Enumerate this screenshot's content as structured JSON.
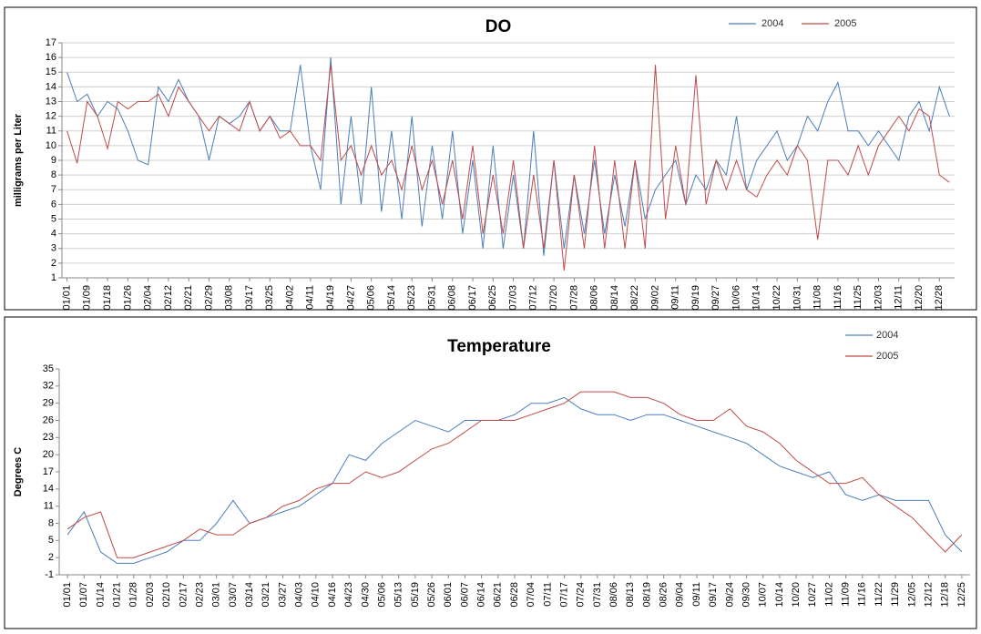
{
  "chart_data": [
    {
      "type": "line",
      "title": "DO",
      "y_label": "milligrams per Liter",
      "categories": [
        "01/01",
        null,
        "01/09",
        null,
        "01/18",
        null,
        "01/26",
        null,
        "02/04",
        null,
        "02/12",
        null,
        "02/21",
        null,
        "02/29",
        null,
        "03/08",
        null,
        "03/17",
        null,
        "03/25",
        null,
        "04/02",
        null,
        "04/11",
        null,
        "04/19",
        null,
        "04/27",
        null,
        "05/06",
        null,
        "05/14",
        null,
        "05/23",
        null,
        "05/31",
        null,
        "06/08",
        null,
        "06/17",
        null,
        "06/25",
        null,
        "07/03",
        null,
        "07/12",
        null,
        "07/20",
        null,
        "07/28",
        null,
        "08/06",
        null,
        "08/14",
        null,
        "08/22",
        null,
        "09/02",
        null,
        "09/11",
        null,
        "09/19",
        null,
        "09/27",
        null,
        "10/06",
        null,
        "10/14",
        null,
        "10/22",
        null,
        "10/31",
        null,
        "11/08",
        null,
        "11/16",
        null,
        "11/25",
        null,
        "12/03",
        null,
        "12/11",
        null,
        "12/20",
        null,
        "12/28",
        null
      ],
      "series": [
        {
          "name": "2004",
          "color": "#4a7ebb",
          "values": [
            15,
            13,
            13.5,
            12,
            13,
            12.5,
            11,
            9,
            8.7,
            14,
            13,
            14.5,
            13,
            12,
            9,
            12,
            11.5,
            12,
            13,
            11,
            12,
            11,
            11,
            15.5,
            10,
            7,
            16,
            6,
            12,
            6,
            14,
            5.5,
            11,
            5,
            12,
            4.5,
            10,
            5,
            11,
            4,
            9,
            3,
            10,
            3,
            8,
            3,
            11,
            2.5,
            9,
            3,
            8,
            4,
            9,
            4,
            8,
            4.5,
            9,
            5,
            7,
            8,
            9,
            6,
            8,
            7,
            9,
            8,
            12,
            7,
            9,
            10,
            11,
            9,
            10,
            12,
            11,
            13,
            14.3,
            11,
            11,
            10,
            11,
            10,
            9,
            12,
            13,
            11,
            14,
            12
          ]
        },
        {
          "name": "2005",
          "color": "#be4b48",
          "values": [
            11,
            8.8,
            13,
            12,
            9.8,
            13,
            12.5,
            13,
            13,
            13.5,
            12,
            14,
            13,
            12,
            11,
            12,
            11.5,
            11,
            13,
            11,
            12,
            10.5,
            11,
            10,
            10,
            9,
            15.5,
            9,
            10,
            8,
            10,
            8,
            9,
            7,
            10,
            7,
            9,
            6,
            9,
            5,
            10,
            4,
            8,
            4,
            9,
            3,
            8,
            3,
            9,
            1.5,
            8,
            3,
            10,
            3,
            9,
            3,
            9,
            3,
            15.5,
            5,
            10,
            6,
            14.8,
            6,
            9,
            7,
            9,
            7,
            6.5,
            8,
            9,
            8,
            10,
            9,
            3.6,
            9,
            9,
            8,
            10,
            8,
            10,
            11,
            12,
            11,
            12.5,
            12,
            8,
            7.5
          ]
        }
      ],
      "ylim": [
        1,
        17
      ],
      "yticks": [
        1,
        2,
        3,
        4,
        5,
        6,
        7,
        8,
        9,
        10,
        11,
        12,
        13,
        14,
        15,
        16,
        17
      ],
      "grid": true,
      "legend": "upper right"
    },
    {
      "type": "line",
      "title": "Temperature",
      "y_label": "Degrees C",
      "categories": [
        "01/01",
        "01/07",
        "01/14",
        "01/21",
        "01/28",
        "02/03",
        "02/10",
        "02/17",
        "02/23",
        "03/01",
        "03/07",
        "03/14",
        "03/21",
        "03/27",
        "04/03",
        "04/10",
        "04/16",
        "04/23",
        "04/30",
        "05/06",
        "05/13",
        "05/19",
        "05/26",
        "06/01",
        "06/07",
        "06/14",
        "06/21",
        "06/28",
        "07/04",
        "07/11",
        "07/17",
        "07/24",
        "07/31",
        "08/06",
        "08/13",
        "08/19",
        "08/26",
        "09/04",
        "09/11",
        "09/17",
        "09/24",
        "09/30",
        "10/07",
        "10/14",
        "10/20",
        "10/27",
        "11/02",
        "11/09",
        "11/16",
        "11/22",
        "11/29",
        "12/05",
        "12/12",
        "12/18",
        "12/25"
      ],
      "series": [
        {
          "name": "2004",
          "color": "#4a7ebb",
          "values": [
            6,
            10,
            3,
            1,
            1,
            2,
            3,
            5,
            5,
            8,
            12,
            8,
            9,
            10,
            11,
            13,
            15,
            20,
            19,
            22,
            24,
            26,
            25,
            24,
            26,
            26,
            26,
            27,
            29,
            29,
            30,
            28,
            27,
            27,
            26,
            27,
            27,
            26,
            25,
            24,
            23,
            22,
            20,
            18,
            17,
            16,
            17,
            13,
            12,
            13,
            12,
            12,
            12,
            6,
            3
          ]
        },
        {
          "name": "2005",
          "color": "#be4b48",
          "values": [
            7,
            9,
            10,
            2,
            2,
            3,
            4,
            5,
            7,
            6,
            6,
            8,
            9,
            11,
            12,
            14,
            15,
            15,
            17,
            16,
            17,
            19,
            21,
            22,
            24,
            26,
            26,
            26,
            27,
            28,
            29,
            31,
            31,
            31,
            30,
            30,
            29,
            27,
            26,
            26,
            28,
            25,
            24,
            22,
            19,
            17,
            15,
            15,
            16,
            13,
            11,
            9,
            6,
            3,
            6
          ]
        }
      ],
      "ylim": [
        -1,
        35
      ],
      "yticks": [
        -1,
        2,
        5,
        8,
        11,
        14,
        17,
        20,
        23,
        26,
        29,
        32,
        35
      ],
      "grid": false,
      "legend": "upper right"
    }
  ]
}
